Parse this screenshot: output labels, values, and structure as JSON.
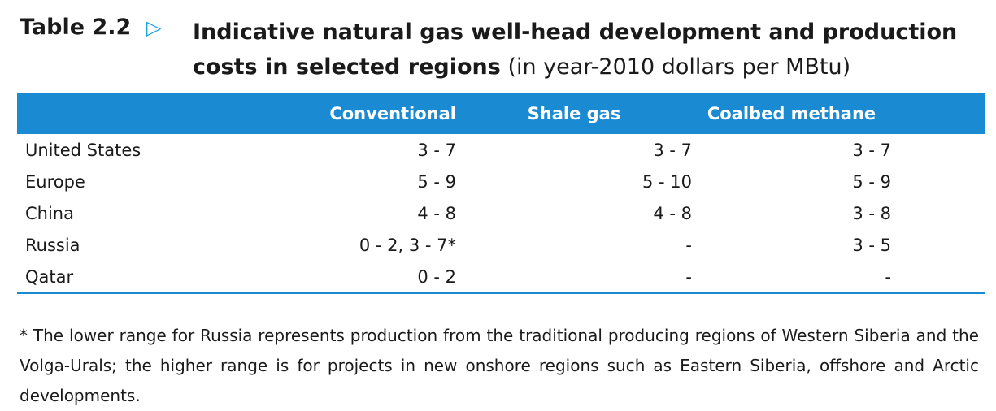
{
  "header": {
    "table_label": "Table 2.2",
    "marker_icon": "triangle-right-icon",
    "title_bold": "Indicative natural gas well-head development and production costs in selected regions",
    "title_units": "(in year-2010 dollars per MBtu)"
  },
  "table": {
    "columns": [
      "",
      "Conventional",
      "Shale gas",
      "Coalbed methane"
    ],
    "rows": [
      {
        "region": "United States",
        "conventional": "3 - 7",
        "shale": "3 - 7",
        "cbm": "3 - 7"
      },
      {
        "region": "Europe",
        "conventional": "5 - 9",
        "shale": "5 - 10",
        "cbm": "5 - 9"
      },
      {
        "region": "China",
        "conventional": "4 - 8",
        "shale": "4 - 8",
        "cbm": "3 - 8"
      },
      {
        "region": "Russia",
        "conventional": "0 - 2, 3 - 7*",
        "shale": "-",
        "cbm": "3 - 5"
      },
      {
        "region": "Qatar",
        "conventional": "0 - 2",
        "shale": "-",
        "cbm": "-"
      }
    ]
  },
  "footnote": "* The lower range for Russia represents production from the traditional producing regions of Western Siberia and the Volga-Urals; the higher range is for projects in new onshore regions such as Eastern Siberia, offshore and Arctic developments.",
  "colors": {
    "header_fill": "#1a8ad3",
    "marker": "#1ba1e2"
  }
}
